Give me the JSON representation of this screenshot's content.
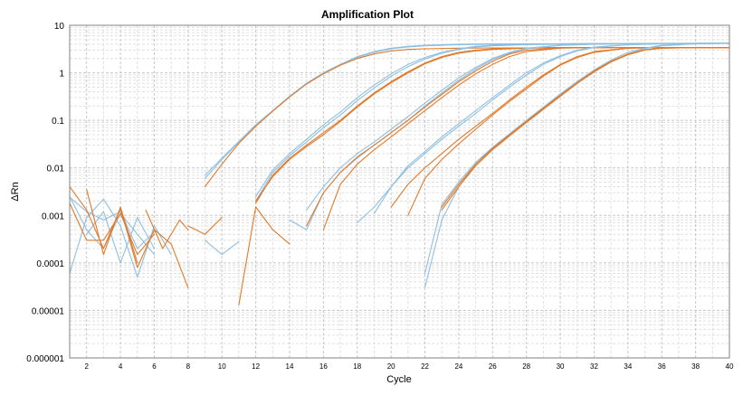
{
  "chart_data": {
    "type": "line",
    "title": "Amplification Plot",
    "xlabel": "Cycle",
    "ylabel": "ΔRn",
    "xlim": [
      1,
      40
    ],
    "ylim": [
      1e-06,
      10
    ],
    "y_scale": "log",
    "grid": true,
    "x_ticks": [
      "2",
      "4",
      "6",
      "8",
      "10",
      "12",
      "14",
      "16",
      "18",
      "20",
      "22",
      "24",
      "26",
      "28",
      "30",
      "32",
      "34",
      "36",
      "38",
      "40"
    ],
    "y_ticks": [
      "10",
      "1",
      "0.1",
      "0.01",
      "0.001",
      "0.0001",
      "0.00001",
      "0.000001"
    ],
    "colors": {
      "blue": "#8fbfe0",
      "orange": "#e07a2a"
    },
    "series": [
      {
        "color": "blue",
        "x": [
          1,
          2,
          3,
          4,
          5,
          6,
          7
        ],
        "y": [
          6e-05,
          0.0009,
          0.0022,
          0.0006,
          5e-05,
          0.0006,
          0.00015
        ]
      },
      {
        "color": "blue",
        "x": [
          1,
          2,
          3,
          4,
          5,
          6
        ],
        "y": [
          0.0024,
          0.0012,
          0.0008,
          0.0012,
          0.0002,
          0.00045
        ]
      },
      {
        "color": "blue",
        "x": [
          1,
          2,
          3,
          4,
          5,
          6
        ],
        "y": [
          0.0025,
          0.0005,
          0.0002,
          0.0011,
          0.0004,
          0.00015
        ]
      },
      {
        "color": "blue",
        "x": [
          9,
          10,
          11
        ],
        "y": [
          0.0003,
          0.00015,
          0.00028
        ]
      },
      {
        "color": "blue",
        "x": [
          2,
          3,
          4,
          5,
          6
        ],
        "y": [
          0.0004,
          0.0012,
          0.0001,
          0.0009,
          0.0002
        ]
      },
      {
        "color": "orange",
        "x": [
          1,
          2,
          3,
          4,
          5,
          6,
          7,
          8
        ],
        "y": [
          0.004,
          0.0013,
          0.0002,
          0.0014,
          8e-05,
          0.0005,
          0.00025,
          3e-05
        ]
      },
      {
        "color": "orange",
        "x": [
          1,
          2,
          3,
          4,
          5,
          6
        ],
        "y": [
          0.0018,
          0.0003,
          0.0003,
          0.0011,
          0.00015,
          0.0004
        ]
      },
      {
        "color": "orange",
        "x": [
          2,
          3,
          4,
          5
        ],
        "y": [
          0.0035,
          0.00015,
          0.0015,
          0.0001
        ]
      },
      {
        "color": "orange",
        "x": [
          8,
          9,
          10
        ],
        "y": [
          0.0006,
          0.0004,
          0.0009
        ]
      },
      {
        "color": "orange",
        "x": [
          11,
          12,
          13,
          14
        ],
        "y": [
          1.3e-05,
          0.0015,
          0.0005,
          0.00025
        ]
      },
      {
        "color": "orange",
        "x": [
          5.5,
          6.5,
          7.5,
          8
        ],
        "y": [
          0.0013,
          0.0002,
          0.0008,
          0.0005
        ]
      },
      {
        "color": "blue",
        "x": [
          9,
          10,
          11,
          12,
          13,
          14,
          15,
          16,
          17,
          18,
          19,
          20,
          21,
          22,
          24,
          26,
          28,
          30,
          34,
          40
        ],
        "y": [
          0.006,
          0.015,
          0.035,
          0.08,
          0.16,
          0.32,
          0.6,
          1.0,
          1.5,
          2.1,
          2.7,
          3.2,
          3.5,
          3.7,
          3.9,
          4.0,
          4.0,
          4.05,
          4.1,
          4.2
        ]
      },
      {
        "color": "blue",
        "x": [
          9,
          10,
          11,
          12,
          13,
          14,
          15,
          16,
          17,
          18,
          19,
          20,
          21,
          22,
          24,
          26,
          28,
          30,
          34,
          40
        ],
        "y": [
          0.007,
          0.016,
          0.036,
          0.08,
          0.16,
          0.32,
          0.6,
          1.0,
          1.5,
          2.2,
          2.8,
          3.3,
          3.6,
          3.8,
          4.0,
          4.1,
          4.1,
          4.1,
          4.15,
          4.2
        ]
      },
      {
        "color": "orange",
        "x": [
          9,
          10,
          11,
          12,
          13,
          14,
          15,
          16,
          17,
          18,
          19,
          20,
          21,
          22,
          24,
          26,
          28,
          30,
          34,
          40
        ],
        "y": [
          0.004,
          0.012,
          0.033,
          0.075,
          0.155,
          0.31,
          0.58,
          0.95,
          1.45,
          2.0,
          2.5,
          2.9,
          3.1,
          3.2,
          3.3,
          3.35,
          3.35,
          3.4,
          3.4,
          3.4
        ]
      },
      {
        "color": "blue",
        "x": [
          12,
          13,
          14,
          15,
          16,
          17,
          18,
          19,
          20,
          21,
          22,
          23,
          24,
          25,
          26,
          28,
          30,
          34,
          40
        ],
        "y": [
          0.0025,
          0.009,
          0.02,
          0.04,
          0.08,
          0.15,
          0.3,
          0.55,
          0.95,
          1.5,
          2.1,
          2.7,
          3.2,
          3.6,
          3.8,
          4.0,
          4.1,
          4.15,
          4.2
        ]
      },
      {
        "color": "blue",
        "x": [
          12,
          13,
          14,
          15,
          16,
          17,
          18,
          19,
          20,
          21,
          22,
          23,
          24,
          25,
          26,
          28,
          30,
          34,
          40
        ],
        "y": [
          0.002,
          0.008,
          0.018,
          0.035,
          0.07,
          0.13,
          0.26,
          0.48,
          0.85,
          1.35,
          1.95,
          2.6,
          3.1,
          3.5,
          3.7,
          3.9,
          4.0,
          4.1,
          4.2
        ]
      },
      {
        "color": "orange",
        "x": [
          12,
          13,
          14,
          15,
          16,
          17,
          18,
          19,
          20,
          21,
          22,
          23,
          24,
          25,
          26,
          28,
          30,
          34,
          40
        ],
        "y": [
          0.0018,
          0.007,
          0.016,
          0.03,
          0.055,
          0.1,
          0.2,
          0.38,
          0.65,
          1.05,
          1.6,
          2.2,
          2.7,
          3.0,
          3.2,
          3.35,
          3.4,
          3.4,
          3.4
        ]
      },
      {
        "color": "orange",
        "x": [
          12,
          13,
          14,
          15,
          16,
          17,
          18,
          19,
          20,
          21,
          22,
          23,
          24,
          25,
          26,
          28,
          30,
          34,
          40
        ],
        "y": [
          0.002,
          0.0065,
          0.015,
          0.028,
          0.05,
          0.095,
          0.19,
          0.36,
          0.62,
          1.0,
          1.55,
          2.1,
          2.6,
          2.9,
          3.1,
          3.3,
          3.35,
          3.4,
          3.4
        ]
      },
      {
        "color": "blue",
        "x": [
          14,
          15,
          16,
          17,
          18,
          19,
          20,
          21,
          22,
          23,
          24,
          25,
          26,
          27,
          28,
          30,
          32,
          34,
          40
        ],
        "y": [
          0.0008,
          0.0005,
          0.003,
          0.008,
          0.016,
          0.03,
          0.055,
          0.1,
          0.2,
          0.38,
          0.7,
          1.2,
          1.9,
          2.6,
          3.2,
          3.8,
          4.0,
          4.1,
          4.2
        ]
      },
      {
        "color": "blue",
        "x": [
          15,
          16,
          17,
          18,
          19,
          20,
          21,
          22,
          23,
          24,
          25,
          26,
          27,
          28,
          30,
          32,
          34,
          40
        ],
        "y": [
          0.0013,
          0.004,
          0.01,
          0.02,
          0.035,
          0.065,
          0.12,
          0.23,
          0.43,
          0.78,
          1.3,
          2.0,
          2.7,
          3.3,
          3.8,
          4.0,
          4.1,
          4.2
        ]
      },
      {
        "color": "orange",
        "x": [
          16,
          17,
          18,
          19,
          20,
          21,
          22,
          23,
          24,
          25,
          26,
          27,
          28,
          30,
          32,
          34,
          40
        ],
        "y": [
          0.0005,
          0.0045,
          0.012,
          0.024,
          0.045,
          0.085,
          0.16,
          0.3,
          0.55,
          0.95,
          1.5,
          2.2,
          2.8,
          3.3,
          3.4,
          3.4,
          3.4
        ]
      },
      {
        "color": "orange",
        "x": [
          15,
          16,
          17,
          18,
          19,
          20,
          21,
          22,
          23,
          24,
          25,
          26,
          27,
          28,
          30,
          32,
          34,
          40
        ],
        "y": [
          0.0006,
          0.003,
          0.008,
          0.017,
          0.03,
          0.055,
          0.1,
          0.19,
          0.35,
          0.65,
          1.1,
          1.75,
          2.5,
          3.0,
          3.35,
          3.4,
          3.4,
          3.4
        ]
      },
      {
        "color": "blue",
        "x": [
          18,
          19,
          20,
          21,
          22,
          23,
          24,
          25,
          26,
          27,
          28,
          29,
          30,
          31,
          32,
          34,
          36,
          40
        ],
        "y": [
          0.0007,
          0.0015,
          0.004,
          0.01,
          0.02,
          0.04,
          0.075,
          0.14,
          0.27,
          0.5,
          0.9,
          1.5,
          2.2,
          2.9,
          3.4,
          3.9,
          4.1,
          4.2
        ]
      },
      {
        "color": "blue",
        "x": [
          19,
          20,
          21,
          22,
          23,
          24,
          25,
          26,
          27,
          28,
          29,
          30,
          31,
          32,
          34,
          36,
          40
        ],
        "y": [
          0.0011,
          0.004,
          0.011,
          0.022,
          0.045,
          0.085,
          0.16,
          0.3,
          0.55,
          1.0,
          1.6,
          2.3,
          3.0,
          3.5,
          3.9,
          4.1,
          4.2
        ]
      },
      {
        "color": "orange",
        "x": [
          20,
          21,
          22,
          23,
          24,
          25,
          26,
          27,
          28,
          29,
          30,
          31,
          32,
          34,
          36,
          40
        ],
        "y": [
          0.0015,
          0.0045,
          0.01,
          0.02,
          0.04,
          0.075,
          0.14,
          0.27,
          0.5,
          0.9,
          1.5,
          2.2,
          2.8,
          3.3,
          3.4,
          3.4
        ]
      },
      {
        "color": "orange",
        "x": [
          21,
          22,
          23,
          24,
          25,
          26,
          27,
          28,
          29,
          30,
          31,
          32,
          34,
          36,
          40
        ],
        "y": [
          0.001,
          0.006,
          0.015,
          0.032,
          0.065,
          0.13,
          0.25,
          0.46,
          0.85,
          1.45,
          2.1,
          2.7,
          3.3,
          3.4,
          3.4
        ]
      },
      {
        "color": "blue",
        "x": [
          22,
          23,
          24,
          25,
          26,
          27,
          28,
          29,
          30,
          31,
          32,
          33,
          34,
          35,
          36,
          38,
          40
        ],
        "y": [
          3e-05,
          0.0008,
          0.004,
          0.012,
          0.025,
          0.048,
          0.09,
          0.17,
          0.32,
          0.6,
          1.05,
          1.7,
          2.5,
          3.2,
          3.7,
          4.1,
          4.2
        ]
      },
      {
        "color": "blue",
        "x": [
          22,
          23,
          24,
          25,
          26,
          27,
          28,
          29,
          30,
          31,
          32,
          33,
          34,
          35,
          36,
          38,
          40
        ],
        "y": [
          6e-05,
          0.0017,
          0.005,
          0.013,
          0.027,
          0.052,
          0.1,
          0.19,
          0.36,
          0.66,
          1.15,
          1.85,
          2.7,
          3.3,
          3.8,
          4.1,
          4.2
        ]
      },
      {
        "color": "orange",
        "x": [
          23,
          24,
          25,
          26,
          27,
          28,
          29,
          30,
          31,
          32,
          33,
          34,
          35,
          36,
          38,
          40
        ],
        "y": [
          0.0013,
          0.004,
          0.011,
          0.024,
          0.047,
          0.09,
          0.17,
          0.32,
          0.6,
          1.05,
          1.7,
          2.4,
          3.0,
          3.3,
          3.4,
          3.4
        ]
      },
      {
        "color": "orange",
        "x": [
          23,
          24,
          25,
          26,
          27,
          28,
          29,
          30,
          31,
          32,
          33,
          34,
          35,
          36,
          38,
          40
        ],
        "y": [
          0.0015,
          0.0045,
          0.012,
          0.026,
          0.05,
          0.095,
          0.18,
          0.34,
          0.62,
          1.1,
          1.75,
          2.5,
          3.05,
          3.3,
          3.4,
          3.4
        ]
      }
    ]
  }
}
